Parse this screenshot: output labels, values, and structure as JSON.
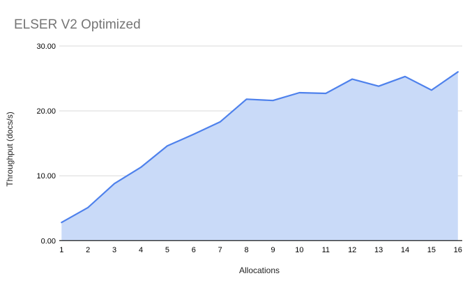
{
  "chart_data": {
    "type": "area",
    "title": "ELSER V2 Optimized",
    "xlabel": "Allocations",
    "ylabel": "Throughput (docs/s)",
    "x": [
      1,
      2,
      3,
      4,
      5,
      6,
      7,
      8,
      9,
      10,
      11,
      12,
      13,
      14,
      15,
      16
    ],
    "x_tick_labels": [
      "1",
      "2",
      "3",
      "4",
      "5",
      "6",
      "7",
      "8",
      "9",
      "10",
      "11",
      "12",
      "13",
      "14",
      "15",
      "16"
    ],
    "series": [
      {
        "name": "Throughput (docs/s)",
        "values": [
          2.8,
          5.1,
          8.8,
          11.3,
          14.6,
          16.4,
          18.3,
          21.8,
          21.6,
          22.8,
          22.7,
          24.9,
          23.8,
          25.3,
          23.2,
          26.0
        ]
      }
    ],
    "ylim": [
      0,
      30
    ],
    "xlim": [
      1,
      16
    ],
    "y_ticks": [
      0,
      10,
      20,
      30
    ],
    "y_tick_labels": [
      "0.00",
      "10.00",
      "20.00",
      "30.00"
    ],
    "grid": "horizontal",
    "legend": "none",
    "colors": {
      "line": "#4e81ec",
      "area_fill": "#c9daf8",
      "gridline": "#d9d9d9",
      "axis_line": "#333333",
      "title_text": "#757575",
      "tick_text": "#000000",
      "axis_title_text": "#222222",
      "background": "#ffffff"
    }
  }
}
